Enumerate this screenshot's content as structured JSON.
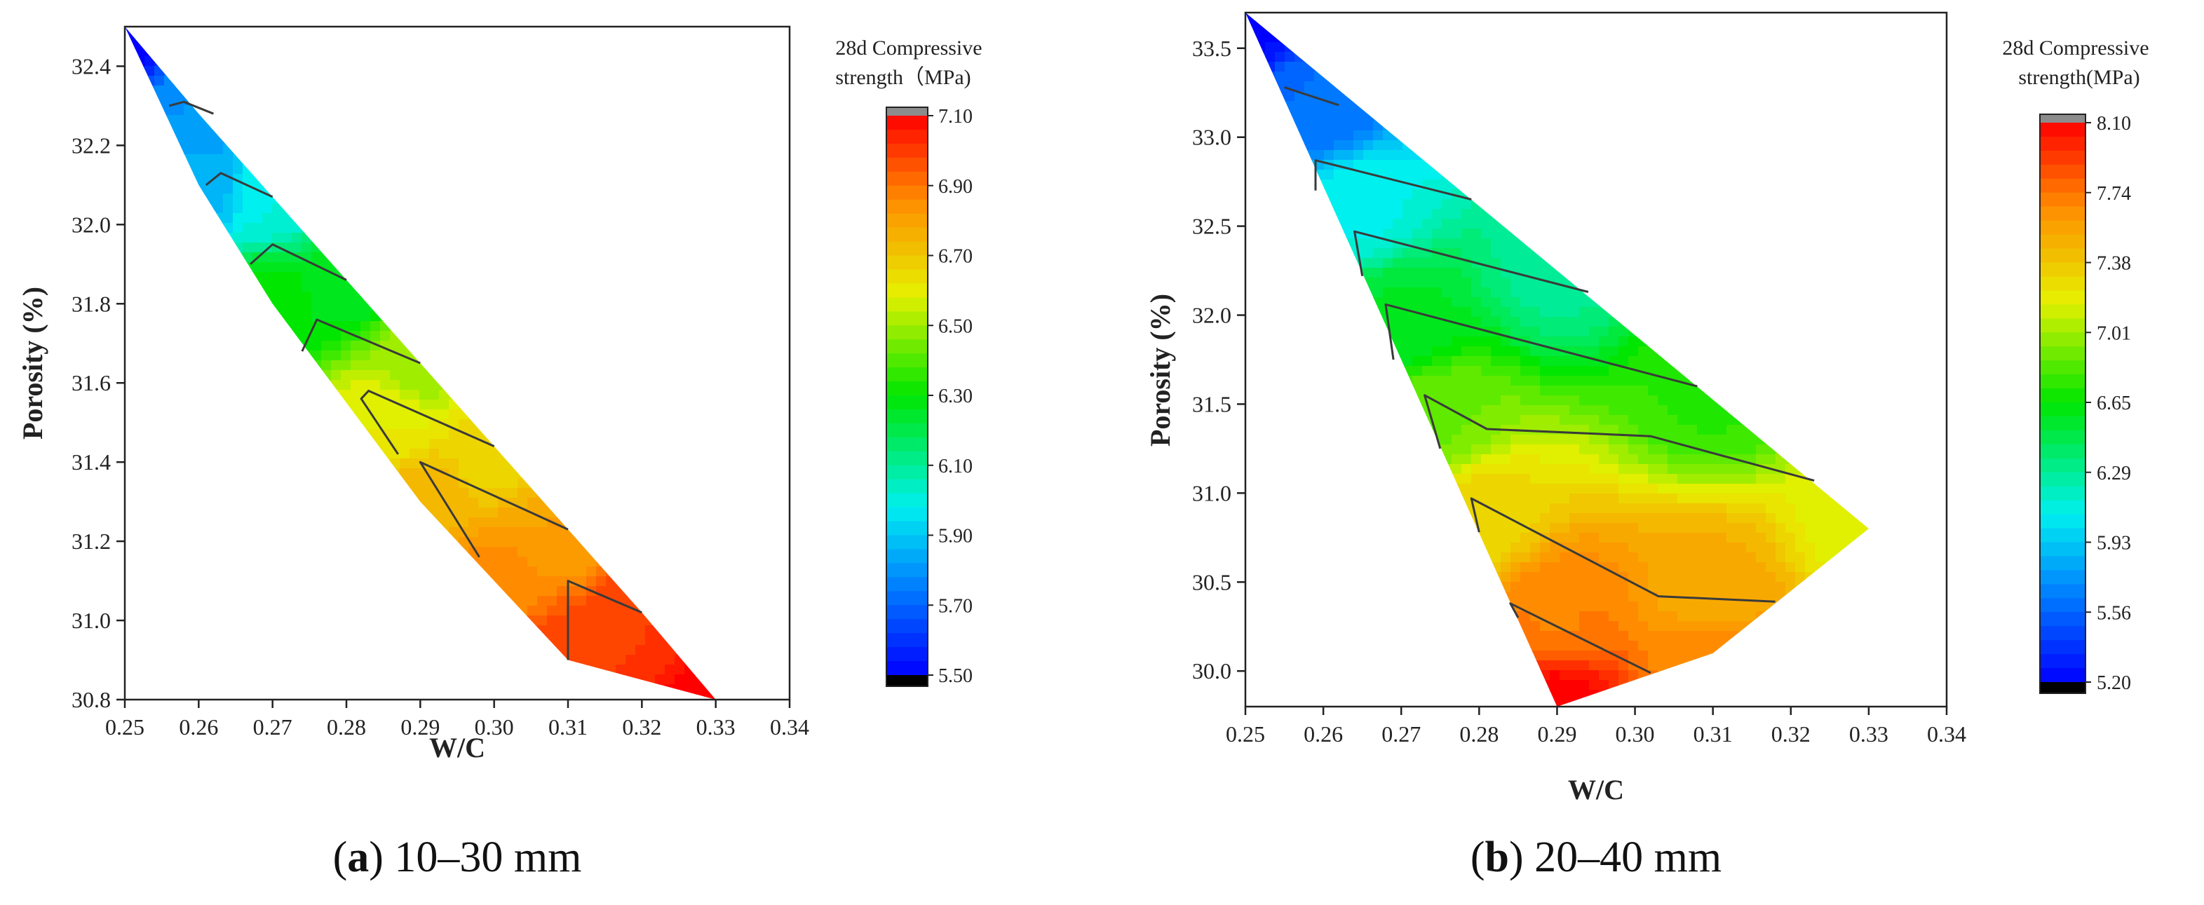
{
  "chart_data": [
    {
      "type": "contour",
      "panel": "a",
      "caption_letter": "a",
      "caption_text": " 10–30 mm",
      "xlabel": "W/C",
      "ylabel": "Porosity (%)",
      "xlim": [
        0.25,
        0.34
      ],
      "ylim": [
        30.8,
        32.5
      ],
      "xticks": [
        "0.25",
        "0.26",
        "0.27",
        "0.28",
        "0.29",
        "0.30",
        "0.31",
        "0.32",
        "0.33",
        "0.34"
      ],
      "yticks": [
        "30.8",
        "31.0",
        "31.2",
        "31.4",
        "31.6",
        "31.8",
        "32.0",
        "32.2",
        "32.4"
      ],
      "colorbar": {
        "title_line1": "28d Compressive",
        "title_line2": "strength（MPa)",
        "min": 5.5,
        "max": 7.1,
        "ticks": [
          "7.10",
          "6.90",
          "6.70",
          "6.50",
          "6.30",
          "6.10",
          "5.90",
          "5.70",
          "5.50"
        ]
      },
      "domain_polygon": [
        [
          0.25,
          32.5
        ],
        [
          0.26,
          32.28
        ],
        [
          0.27,
          32.07
        ],
        [
          0.28,
          31.86
        ],
        [
          0.29,
          31.65
        ],
        [
          0.3,
          31.44
        ],
        [
          0.31,
          31.23
        ],
        [
          0.32,
          31.02
        ],
        [
          0.33,
          30.8
        ],
        [
          0.31,
          30.9
        ],
        [
          0.29,
          31.3
        ],
        [
          0.27,
          31.8
        ],
        [
          0.26,
          32.1
        ],
        [
          0.25,
          32.5
        ]
      ],
      "value_anchors": [
        [
          0.25,
          32.5,
          5.5
        ],
        [
          0.26,
          32.28,
          5.8
        ],
        [
          0.26,
          32.1,
          5.85
        ],
        [
          0.27,
          32.07,
          6.0
        ],
        [
          0.27,
          31.8,
          6.3
        ],
        [
          0.28,
          31.86,
          6.25
        ],
        [
          0.29,
          31.65,
          6.5
        ],
        [
          0.285,
          31.5,
          6.6
        ],
        [
          0.29,
          31.3,
          6.75
        ],
        [
          0.3,
          31.44,
          6.65
        ],
        [
          0.3,
          31.1,
          6.85
        ],
        [
          0.31,
          31.23,
          6.8
        ],
        [
          0.31,
          30.9,
          7.0
        ],
        [
          0.32,
          31.02,
          7.0
        ],
        [
          0.33,
          30.8,
          7.1
        ]
      ],
      "contour_lines": [
        [
          [
            0.256,
            32.3
          ],
          [
            0.258,
            32.31
          ],
          [
            0.262,
            32.28
          ]
        ],
        [
          [
            0.261,
            32.1
          ],
          [
            0.263,
            32.13
          ],
          [
            0.27,
            32.07
          ]
        ],
        [
          [
            0.267,
            31.9
          ],
          [
            0.27,
            31.95
          ],
          [
            0.28,
            31.86
          ]
        ],
        [
          [
            0.274,
            31.68
          ],
          [
            0.276,
            31.76
          ],
          [
            0.29,
            31.65
          ]
        ],
        [
          [
            0.287,
            31.42
          ],
          [
            0.282,
            31.56
          ],
          [
            0.283,
            31.58
          ],
          [
            0.3,
            31.44
          ]
        ],
        [
          [
            0.298,
            31.16
          ],
          [
            0.29,
            31.4
          ],
          [
            0.31,
            31.23
          ]
        ],
        [
          [
            0.31,
            30.9
          ],
          [
            0.31,
            31.1
          ],
          [
            0.32,
            31.02
          ]
        ]
      ]
    },
    {
      "type": "contour",
      "panel": "b",
      "caption_letter": "b",
      "caption_text": " 20–40 mm",
      "xlabel": "W/C",
      "ylabel": "Porosity (%)",
      "xlim": [
        0.25,
        0.34
      ],
      "ylim": [
        29.8,
        33.7
      ],
      "xticks": [
        "0.25",
        "0.26",
        "0.27",
        "0.28",
        "0.29",
        "0.30",
        "0.31",
        "0.32",
        "0.33",
        "0.34"
      ],
      "yticks": [
        "30.0",
        "30.5",
        "31.0",
        "31.5",
        "32.0",
        "32.5",
        "33.0",
        "33.5"
      ],
      "colorbar": {
        "title_line1": "28d Compressive",
        "title_line2": "strength(MPa)",
        "min": 5.2,
        "max": 8.1,
        "ticks": [
          "8.10",
          "7.74",
          "7.38",
          "7.01",
          "6.65",
          "6.29",
          "5.93",
          "5.56",
          "5.20"
        ]
      },
      "domain_polygon": [
        [
          0.25,
          33.7
        ],
        [
          0.33,
          30.8
        ],
        [
          0.31,
          30.1
        ],
        [
          0.29,
          29.8
        ],
        [
          0.25,
          33.7
        ]
      ],
      "value_anchors": [
        [
          0.25,
          33.7,
          5.2
        ],
        [
          0.26,
          33.2,
          5.6
        ],
        [
          0.265,
          32.6,
          6.1
        ],
        [
          0.29,
          32.3,
          6.3
        ],
        [
          0.27,
          32.0,
          6.55
        ],
        [
          0.31,
          31.6,
          6.75
        ],
        [
          0.275,
          31.4,
          6.9
        ],
        [
          0.33,
          30.8,
          7.15
        ],
        [
          0.28,
          30.9,
          7.3
        ],
        [
          0.31,
          30.4,
          7.5
        ],
        [
          0.29,
          30.3,
          7.7
        ],
        [
          0.31,
          30.1,
          7.7
        ],
        [
          0.29,
          29.8,
          8.1
        ]
      ],
      "contour_lines": [
        [
          [
            0.255,
            33.28
          ],
          [
            0.262,
            33.18
          ]
        ],
        [
          [
            0.259,
            32.7
          ],
          [
            0.259,
            32.87
          ],
          [
            0.279,
            32.65
          ]
        ],
        [
          [
            0.265,
            32.22
          ],
          [
            0.264,
            32.47
          ],
          [
            0.294,
            32.13
          ]
        ],
        [
          [
            0.269,
            31.75
          ],
          [
            0.268,
            32.06
          ],
          [
            0.308,
            31.6
          ]
        ],
        [
          [
            0.275,
            31.25
          ],
          [
            0.273,
            31.55
          ],
          [
            0.281,
            31.36
          ],
          [
            0.302,
            31.32
          ],
          [
            0.323,
            31.07
          ]
        ],
        [
          [
            0.28,
            30.78
          ],
          [
            0.279,
            30.97
          ],
          [
            0.303,
            30.42
          ],
          [
            0.318,
            30.39
          ]
        ],
        [
          [
            0.285,
            30.3
          ],
          [
            0.284,
            30.38
          ],
          [
            0.302,
            29.99
          ]
        ]
      ]
    }
  ]
}
